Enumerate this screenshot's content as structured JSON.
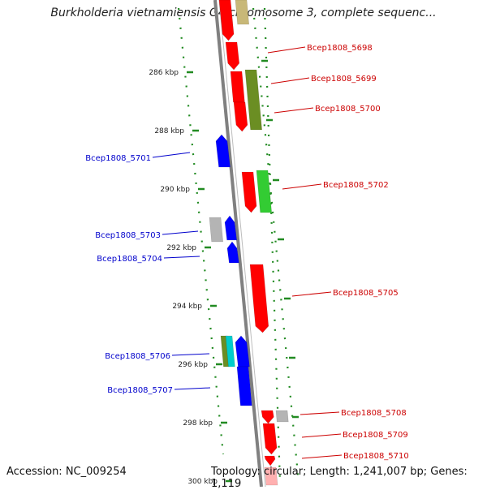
{
  "header": {
    "title": "Burkholderia vietnamiensis G4 chromosome 3, complete sequenc..."
  },
  "footer": {
    "accession": "Accession: NC_009254",
    "summary": "Topology: circular; Length: 1,241,007 bp; Genes: 1,119"
  },
  "map": {
    "scale_labels": [
      "286 kbp",
      "288 kbp",
      "290 kbp",
      "292 kbp",
      "294 kbp",
      "296 kbp",
      "298 kbp",
      "300 kbp"
    ],
    "genes_right": [
      {
        "label": "Bcep1808_5698",
        "color": "#cc0000"
      },
      {
        "label": "Bcep1808_5699",
        "color": "#cc0000"
      },
      {
        "label": "Bcep1808_5700",
        "color": "#cc0000"
      },
      {
        "label": "Bcep1808_5702",
        "color": "#cc0000"
      },
      {
        "label": "Bcep1808_5705",
        "color": "#cc0000"
      },
      {
        "label": "Bcep1808_5708",
        "color": "#cc0000"
      },
      {
        "label": "Bcep1808_5709",
        "color": "#cc0000"
      },
      {
        "label": "Bcep1808_5710",
        "color": "#cc0000"
      }
    ],
    "genes_left": [
      {
        "label": "Bcep1808_5701",
        "color": "#0000cc"
      },
      {
        "label": "Bcep1808_5703",
        "color": "#0000cc"
      },
      {
        "label": "Bcep1808_5704",
        "color": "#0000cc"
      },
      {
        "label": "Bcep1808_5706",
        "color": "#0000cc"
      },
      {
        "label": "Bcep1808_5707",
        "color": "#0000cc"
      }
    ],
    "colors": {
      "forward": "#ff0000",
      "reverse": "#0000ff",
      "olive": "#6b8e23",
      "green": "#33cc33",
      "gray": "#b4b4b4",
      "tan": "#c8b878",
      "cyan": "#00cccc",
      "pink": "#ffb0b0",
      "backbone": "#808080",
      "dots": "#228b22"
    }
  }
}
